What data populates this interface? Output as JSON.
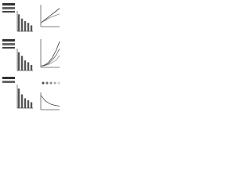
{
  "chart_data": [
    {
      "type": "bar",
      "values": [
        1.0,
        0.75,
        0.6,
        0.5,
        0.35
      ],
      "color": "#555555",
      "ylim": [
        0,
        1.2
      ]
    },
    {
      "type": "line",
      "x": [
        0,
        1,
        2,
        3,
        4
      ],
      "xlim": [
        0,
        4
      ],
      "ylim": [
        0,
        1.2
      ],
      "series": [
        {
          "color": "#222222",
          "values": [
            0.2,
            0.4,
            0.6,
            0.8,
            1.0
          ]
        },
        {
          "color": "#777777",
          "values": [
            0.2,
            0.35,
            0.5,
            0.6,
            0.7
          ]
        }
      ]
    },
    {
      "type": "bar",
      "values": [
        1.0,
        0.8,
        0.55,
        0.45,
        0.3
      ],
      "color": "#555555",
      "ylim": [
        0,
        1.2
      ]
    },
    {
      "type": "line",
      "x": [
        0,
        1,
        2,
        3,
        4,
        5
      ],
      "xlim": [
        0,
        5
      ],
      "ylim": [
        0,
        1.2
      ],
      "series": [
        {
          "color": "#222222",
          "values": [
            0.05,
            0.1,
            0.2,
            0.4,
            0.7,
            1.1
          ]
        },
        {
          "color": "#555555",
          "values": [
            0.05,
            0.08,
            0.15,
            0.3,
            0.5,
            0.8
          ]
        },
        {
          "color": "#888888",
          "values": [
            0.05,
            0.07,
            0.12,
            0.2,
            0.3,
            0.5
          ]
        }
      ]
    },
    {
      "type": "bar",
      "values": [
        1.0,
        0.7,
        0.5,
        0.4,
        0.3
      ],
      "color": "#555555",
      "ylim": [
        0,
        1.2
      ]
    },
    {
      "type": "line",
      "x": [
        0,
        1,
        2,
        3,
        4
      ],
      "xlim": [
        0,
        4
      ],
      "ylim": [
        0,
        1.2
      ],
      "series": [
        {
          "color": "#333333",
          "values": [
            1.0,
            0.6,
            0.4,
            0.3,
            0.25
          ]
        }
      ]
    }
  ]
}
